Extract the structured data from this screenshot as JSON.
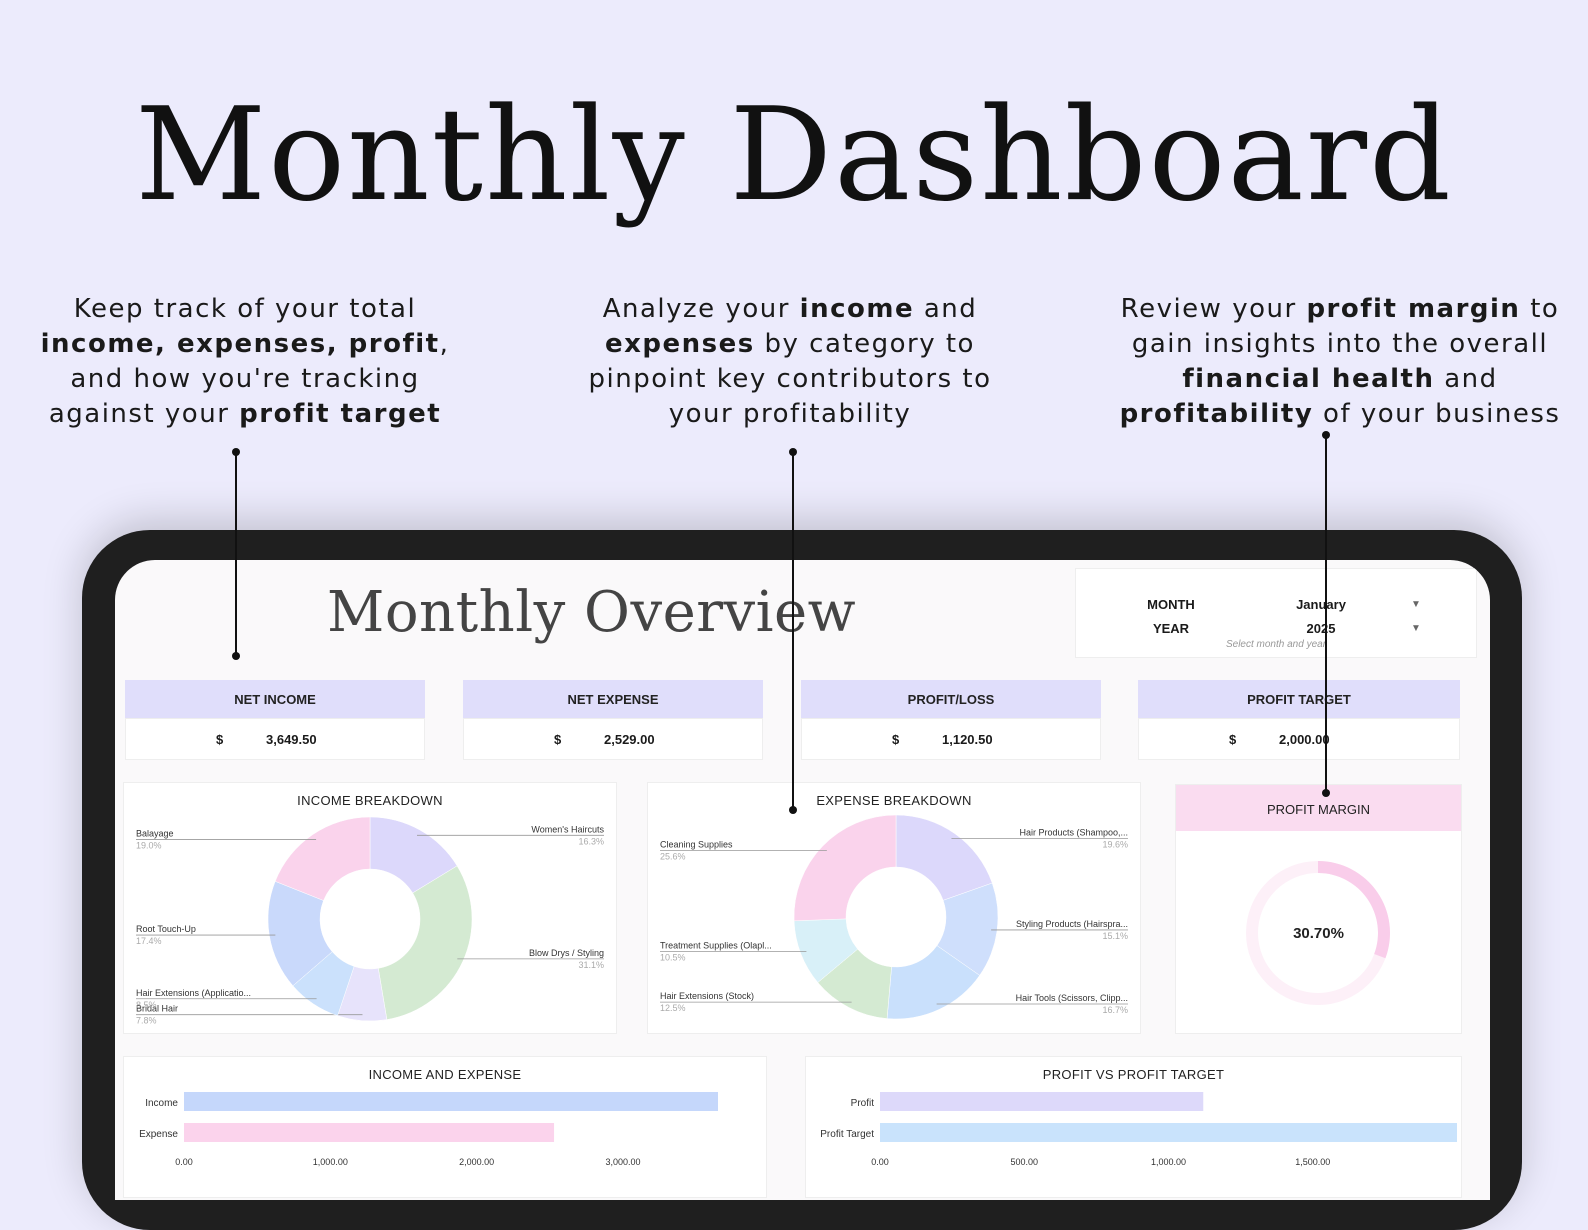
{
  "hero": {
    "title": "Monthly Dashboard"
  },
  "callouts": [
    {
      "parts": [
        {
          "t": "Keep track of your total ",
          "b": false
        },
        {
          "t": "income, expenses, profit",
          "b": true
        },
        {
          "t": ", and how you're tracking against your ",
          "b": false
        },
        {
          "t": "profit target",
          "b": true
        }
      ]
    },
    {
      "parts": [
        {
          "t": "Analyze your ",
          "b": false
        },
        {
          "t": "income",
          "b": true
        },
        {
          "t": " and ",
          "b": false
        },
        {
          "t": "expenses",
          "b": true
        },
        {
          "t": " by category to pinpoint key contributors to your profitability",
          "b": false
        }
      ]
    },
    {
      "parts": [
        {
          "t": "Review your ",
          "b": false
        },
        {
          "t": "profit margin",
          "b": true
        },
        {
          "t": " to gain insights into the overall ",
          "b": false
        },
        {
          "t": "financial health",
          "b": true
        },
        {
          "t": " and ",
          "b": false
        },
        {
          "t": "profitability",
          "b": true
        },
        {
          "t": " of your business",
          "b": false
        }
      ]
    }
  ],
  "dashboard": {
    "title": "Monthly Overview",
    "selector": {
      "month_label": "MONTH",
      "month_value": "January",
      "year_label": "YEAR",
      "year_value": "2025",
      "hint": "Select month and year"
    },
    "kpis": [
      {
        "label": "NET INCOME",
        "currency": "$",
        "value": "3,649.50"
      },
      {
        "label": "NET EXPENSE",
        "currency": "$",
        "value": "2,529.00"
      },
      {
        "label": "PROFIT/LOSS",
        "currency": "$",
        "value": "1,120.50"
      },
      {
        "label": "PROFIT TARGET",
        "currency": "$",
        "value": "2,000.00"
      }
    ],
    "profit_margin": {
      "title": "PROFIT MARGIN",
      "value": "30.70%",
      "fraction": 0.307
    }
  },
  "colors": {
    "background": "#ecebfc",
    "kpi_header": "#e0defb",
    "profit_margin_header": "#fadcf0",
    "income_bar": "#c5d7fb",
    "expense_bar": "#fbd3ec",
    "profit_bar": "#ddd9fa",
    "profit_target_bar": "#c9e3fc"
  },
  "chart_data": [
    {
      "type": "pie",
      "title": "INCOME BREAKDOWN",
      "slices": [
        {
          "name": "Women's Haircuts",
          "pct": "16.3%",
          "value": 16.3,
          "color": "#dcd8fb"
        },
        {
          "name": "Blow Drys / Styling",
          "pct": "31.1%",
          "value": 31.1,
          "color": "#d4ead2"
        },
        {
          "name": "Bridal Hair",
          "pct": "7.8%",
          "value": 7.8,
          "color": "#e7e3fb"
        },
        {
          "name": "Hair Extensions (Applicatio...",
          "pct": "8.5%",
          "value": 8.5,
          "color": "#cbe1fc"
        },
        {
          "name": "Root Touch-Up",
          "pct": "17.4%",
          "value": 17.4,
          "color": "#c9d9fb"
        },
        {
          "name": "Balayage",
          "pct": "19.0%",
          "value": 19.0,
          "color": "#fad3ec"
        }
      ]
    },
    {
      "type": "pie",
      "title": "EXPENSE BREAKDOWN",
      "slices": [
        {
          "name": "Hair Products (Shampoo,...",
          "pct": "19.6%",
          "value": 19.6,
          "color": "#dcd8fb"
        },
        {
          "name": "Styling Products (Hairspra...",
          "pct": "15.1%",
          "value": 15.1,
          "color": "#cfdffc"
        },
        {
          "name": "Hair Tools (Scissors, Clipp...",
          "pct": "16.7%",
          "value": 16.7,
          "color": "#c9e0fc"
        },
        {
          "name": "Hair Extensions (Stock)",
          "pct": "12.5%",
          "value": 12.5,
          "color": "#d4ead2"
        },
        {
          "name": "Treatment Supplies (Olapl...",
          "pct": "10.5%",
          "value": 10.5,
          "color": "#d8f0f8"
        },
        {
          "name": "Cleaning Supplies",
          "pct": "25.6%",
          "value": 25.6,
          "color": "#fad3ec"
        }
      ]
    },
    {
      "type": "bar",
      "title": "INCOME AND EXPENSE",
      "categories": [
        "Income",
        "Expense"
      ],
      "values": [
        3649.5,
        2529.0
      ],
      "colors": [
        "#c5d7fb",
        "#fbd3ec"
      ],
      "xlim": [
        0,
        3649.5
      ],
      "ticks": [
        "0.00",
        "1,000.00",
        "2,000.00",
        "3,000.00"
      ],
      "tick_values": [
        0,
        1000,
        2000,
        3000
      ]
    },
    {
      "type": "bar",
      "title": "PROFIT VS PROFIT TARGET",
      "categories": [
        "Profit",
        "Profit Target"
      ],
      "values": [
        1120.5,
        2000.0
      ],
      "colors": [
        "#ddd9fa",
        "#c9e3fc"
      ],
      "xlim": [
        0,
        2000
      ],
      "ticks": [
        "0.00",
        "500.00",
        "1,000.00",
        "1,500.00"
      ],
      "tick_values": [
        0,
        500,
        1000,
        1500
      ]
    }
  ]
}
